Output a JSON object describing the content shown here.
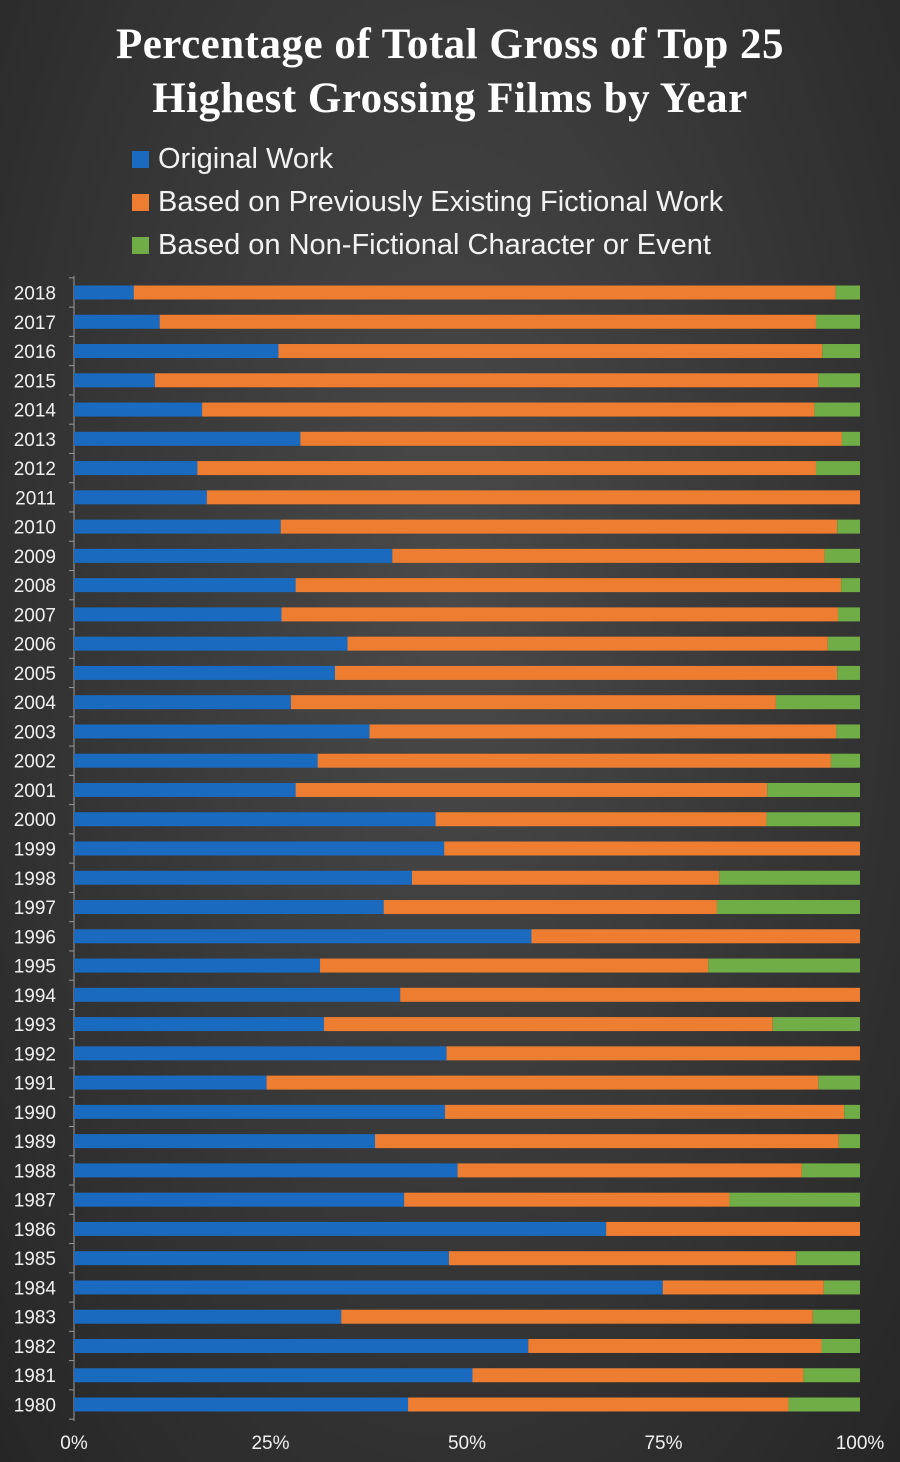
{
  "chart_data": {
    "type": "bar",
    "orientation": "horizontal",
    "stacked": true,
    "title": [
      "Percentage of Total Gross of Top 25",
      "Highest Grossing Films by Year"
    ],
    "xlabel": "",
    "ylabel": "",
    "xlim": [
      0,
      100
    ],
    "x_ticks": [
      0,
      25,
      50,
      75,
      100
    ],
    "x_tick_labels": [
      "0%",
      "25%",
      "50%",
      "75%",
      "100%"
    ],
    "legend_position": "top",
    "categories": [
      "2018",
      "2017",
      "2016",
      "2015",
      "2014",
      "2013",
      "2012",
      "2011",
      "2010",
      "2009",
      "2008",
      "2007",
      "2006",
      "2005",
      "2004",
      "2003",
      "2002",
      "2001",
      "2000",
      "1999",
      "1998",
      "1997",
      "1996",
      "1995",
      "1994",
      "1993",
      "1992",
      "1991",
      "1990",
      "1989",
      "1988",
      "1987",
      "1986",
      "1985",
      "1984",
      "1983",
      "1982",
      "1981",
      "1980"
    ],
    "series": [
      {
        "name": "Original Work",
        "color": "#1a6bbf",
        "values": [
          7.6,
          10.9,
          26.0,
          10.3,
          16.3,
          28.8,
          15.7,
          16.9,
          26.3,
          40.5,
          28.2,
          26.4,
          34.8,
          33.2,
          27.6,
          37.6,
          31.0,
          28.2,
          46.0,
          47.1,
          43.0,
          39.4,
          58.2,
          31.3,
          41.5,
          31.8,
          47.4,
          24.5,
          47.2,
          38.3,
          48.8,
          42.0,
          67.7,
          47.7,
          74.9,
          34.0,
          57.8,
          50.7,
          42.5
        ]
      },
      {
        "name": "Based on Previously Existing Fictional Work",
        "color": "#ed7d31",
        "values": [
          89.3,
          83.5,
          69.2,
          84.4,
          77.9,
          68.9,
          78.7,
          83.1,
          70.8,
          55.0,
          69.4,
          70.8,
          61.1,
          63.9,
          61.7,
          59.4,
          65.3,
          60.0,
          42.1,
          52.9,
          39.1,
          42.4,
          41.8,
          49.4,
          58.5,
          57.1,
          52.6,
          70.2,
          50.8,
          59.0,
          43.8,
          41.4,
          32.3,
          44.2,
          20.5,
          60.0,
          37.3,
          42.1,
          48.4
        ]
      },
      {
        "name": "Based on Non-Fictional Character or Event",
        "color": "#70ad47",
        "values": [
          3.1,
          5.6,
          4.8,
          5.3,
          5.8,
          2.3,
          5.6,
          0.0,
          2.9,
          4.5,
          2.4,
          2.8,
          4.1,
          2.9,
          10.7,
          3.0,
          3.7,
          11.8,
          11.9,
          0.0,
          17.9,
          18.2,
          0.0,
          19.3,
          0.0,
          11.1,
          0.0,
          5.3,
          2.0,
          2.7,
          7.4,
          16.6,
          0.0,
          8.1,
          4.6,
          6.0,
          4.9,
          7.2,
          9.1
        ]
      }
    ]
  }
}
